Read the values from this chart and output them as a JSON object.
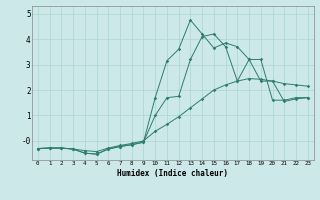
{
  "xlabel": "Humidex (Indice chaleur)",
  "background_color": "#cce8e8",
  "grid_color": "#aad4d4",
  "line_color": "#2e7d6e",
  "xlim": [
    -0.5,
    23.5
  ],
  "ylim": [
    -0.75,
    5.3
  ],
  "yticks": [
    0,
    1,
    2,
    3,
    4,
    5
  ],
  "ytick_labels": [
    "-0",
    "1",
    "2",
    "3",
    "4",
    "5"
  ],
  "xticks": [
    0,
    1,
    2,
    3,
    4,
    5,
    6,
    7,
    8,
    9,
    10,
    11,
    12,
    13,
    14,
    15,
    16,
    17,
    18,
    19,
    20,
    21,
    22,
    23
  ],
  "series1_x": [
    0,
    1,
    2,
    3,
    4,
    5,
    6,
    7,
    8,
    9,
    10,
    11,
    12,
    13,
    14,
    15,
    16,
    17,
    18,
    19,
    20,
    21,
    22,
    23
  ],
  "series1_y": [
    -0.3,
    -0.28,
    -0.28,
    -0.32,
    -0.38,
    -0.42,
    -0.28,
    -0.18,
    -0.1,
    0.0,
    0.38,
    0.65,
    0.95,
    1.3,
    1.65,
    2.0,
    2.2,
    2.35,
    2.45,
    2.42,
    2.35,
    2.25,
    2.2,
    2.15
  ],
  "series2_x": [
    0,
    1,
    2,
    3,
    4,
    5,
    6,
    7,
    8,
    9,
    10,
    11,
    12,
    13,
    14,
    15,
    16,
    17,
    18,
    19,
    20,
    21,
    22,
    23
  ],
  "series2_y": [
    -0.3,
    -0.28,
    -0.28,
    -0.32,
    -0.48,
    -0.52,
    -0.32,
    -0.22,
    -0.15,
    -0.05,
    1.7,
    3.15,
    3.6,
    4.75,
    4.2,
    3.65,
    3.85,
    3.7,
    3.2,
    3.2,
    1.6,
    1.6,
    1.7,
    1.7
  ],
  "series3_x": [
    0,
    1,
    2,
    3,
    4,
    5,
    6,
    7,
    8,
    9,
    10,
    11,
    12,
    13,
    14,
    15,
    16,
    17,
    18,
    19,
    20,
    21,
    22,
    23
  ],
  "series3_y": [
    -0.3,
    -0.28,
    -0.28,
    -0.32,
    -0.48,
    -0.52,
    -0.32,
    -0.22,
    -0.15,
    -0.05,
    1.0,
    1.7,
    1.75,
    3.2,
    4.1,
    4.2,
    3.7,
    2.35,
    3.2,
    2.35,
    2.35,
    1.55,
    1.65,
    1.7
  ]
}
